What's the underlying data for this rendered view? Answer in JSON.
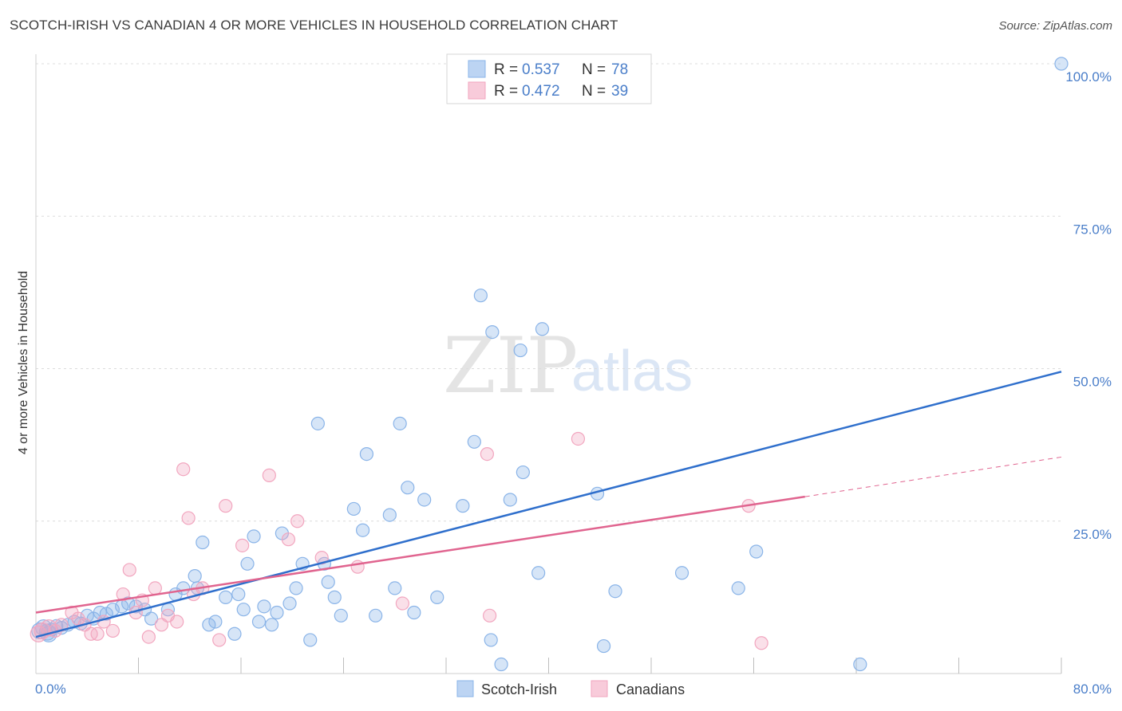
{
  "header": {
    "title": "SCOTCH-IRISH VS CANADIAN 4 OR MORE VEHICLES IN HOUSEHOLD CORRELATION CHART",
    "source": "Source: ZipAtlas.com"
  },
  "watermark": {
    "zip": "ZIP",
    "atlas": "atlas"
  },
  "chart_data": {
    "type": "scatter",
    "ylabel": "4 or more Vehicles in Household",
    "xlim": [
      0,
      80
    ],
    "ylim": [
      0,
      100
    ],
    "x_tick_labels": [
      "0.0%",
      "80.0%"
    ],
    "y_ticks": [
      25,
      50,
      75,
      100
    ],
    "y_tick_labels": [
      "25.0%",
      "50.0%",
      "75.0%",
      "100.0%"
    ],
    "grid": "horizontal dashed",
    "legend_position": "top-center",
    "legend": [
      {
        "r_label": "R = ",
        "r_value": "0.537",
        "n_label": "N = ",
        "n_value": "78"
      },
      {
        "r_label": "R = ",
        "r_value": "0.472",
        "n_label": "N = ",
        "n_value": "39"
      }
    ],
    "series": [
      {
        "name": "Scotch-Irish",
        "color": "#8ab4e8",
        "line_color": "#2f6fcc",
        "trend": {
          "x0": 0,
          "y0": 6,
          "x1": 80,
          "y1": 49.5
        },
        "points": [
          [
            0.3,
            7
          ],
          [
            0.6,
            7.5
          ],
          [
            0.9,
            6.8
          ],
          [
            1.2,
            7.2
          ],
          [
            1.6,
            7.8
          ],
          [
            2,
            7.5
          ],
          [
            2.5,
            8
          ],
          [
            3,
            8.5
          ],
          [
            3.5,
            8.2
          ],
          [
            4,
            9.5
          ],
          [
            4.5,
            9
          ],
          [
            5,
            10
          ],
          [
            5.5,
            9.8
          ],
          [
            6,
            10.5
          ],
          [
            6.7,
            11
          ],
          [
            7.2,
            11.5
          ],
          [
            7.8,
            11
          ],
          [
            8.5,
            10.5
          ],
          [
            9,
            9
          ],
          [
            10.3,
            10.5
          ],
          [
            10.9,
            13
          ],
          [
            11.5,
            14
          ],
          [
            12.4,
            16
          ],
          [
            12.6,
            14
          ],
          [
            13,
            21.5
          ],
          [
            13.5,
            8
          ],
          [
            14,
            8.5
          ],
          [
            14.8,
            12.5
          ],
          [
            15.5,
            6.5
          ],
          [
            15.8,
            13
          ],
          [
            16.2,
            10.5
          ],
          [
            16.5,
            18
          ],
          [
            17,
            22.5
          ],
          [
            17.4,
            8.5
          ],
          [
            17.8,
            11
          ],
          [
            18.4,
            8
          ],
          [
            18.8,
            10
          ],
          [
            19.2,
            23
          ],
          [
            19.8,
            11.5
          ],
          [
            20.3,
            14
          ],
          [
            20.8,
            18
          ],
          [
            21.4,
            5.5
          ],
          [
            22,
            41
          ],
          [
            22.5,
            18
          ],
          [
            22.8,
            15
          ],
          [
            23.3,
            12.5
          ],
          [
            23.8,
            9.5
          ],
          [
            24.8,
            27
          ],
          [
            25.5,
            23.5
          ],
          [
            25.8,
            36
          ],
          [
            26.5,
            9.5
          ],
          [
            27.6,
            26
          ],
          [
            28,
            14
          ],
          [
            28.4,
            41
          ],
          [
            29,
            30.5
          ],
          [
            29.5,
            10
          ],
          [
            30.3,
            28.5
          ],
          [
            31.3,
            12.5
          ],
          [
            33.3,
            27.5
          ],
          [
            34.2,
            38
          ],
          [
            34.7,
            62
          ],
          [
            35.5,
            5.5
          ],
          [
            35.6,
            56
          ],
          [
            36.3,
            1.5
          ],
          [
            37,
            28.5
          ],
          [
            37.8,
            53
          ],
          [
            38,
            33
          ],
          [
            39.2,
            16.5
          ],
          [
            39.5,
            56.5
          ],
          [
            43.8,
            29.5
          ],
          [
            44.3,
            4.5
          ],
          [
            45.2,
            13.5
          ],
          [
            50.4,
            16.5
          ],
          [
            54.8,
            14
          ],
          [
            56.2,
            20
          ],
          [
            64.3,
            1.5
          ],
          [
            80,
            100
          ],
          [
            1,
            6.5
          ]
        ]
      },
      {
        "name": "Canadians",
        "color": "#f2a6bf",
        "line_color": "#e0648f",
        "trend": {
          "x0": 0,
          "y0": 10,
          "x1": 60,
          "y1": 29
        },
        "trend_ext": {
          "x0": 60,
          "y0": 29,
          "x1": 80,
          "y1": 35.5
        },
        "points": [
          [
            0.5,
            7
          ],
          [
            1,
            7.5
          ],
          [
            1.5,
            7
          ],
          [
            2,
            8
          ],
          [
            2.8,
            10
          ],
          [
            3.3,
            9
          ],
          [
            3.8,
            8
          ],
          [
            4.3,
            6.5
          ],
          [
            4.8,
            6.5
          ],
          [
            5.3,
            8.5
          ],
          [
            6,
            7
          ],
          [
            6.8,
            13
          ],
          [
            7.3,
            17
          ],
          [
            7.8,
            10
          ],
          [
            8.3,
            12
          ],
          [
            8.8,
            6
          ],
          [
            9.3,
            14
          ],
          [
            9.8,
            8
          ],
          [
            10.3,
            9.5
          ],
          [
            11,
            8.5
          ],
          [
            11.5,
            33.5
          ],
          [
            11.9,
            25.5
          ],
          [
            12.3,
            13
          ],
          [
            13,
            14
          ],
          [
            14.3,
            5.5
          ],
          [
            14.8,
            27.5
          ],
          [
            16.1,
            21
          ],
          [
            18.2,
            32.5
          ],
          [
            19.7,
            22
          ],
          [
            20.4,
            25
          ],
          [
            22.3,
            19
          ],
          [
            25.1,
            17.5
          ],
          [
            28.6,
            11.5
          ],
          [
            35.2,
            36
          ],
          [
            35.4,
            9.5
          ],
          [
            42.3,
            38.5
          ],
          [
            55.6,
            27.5
          ],
          [
            56.6,
            5
          ],
          [
            0.2,
            6.5
          ]
        ]
      }
    ]
  }
}
